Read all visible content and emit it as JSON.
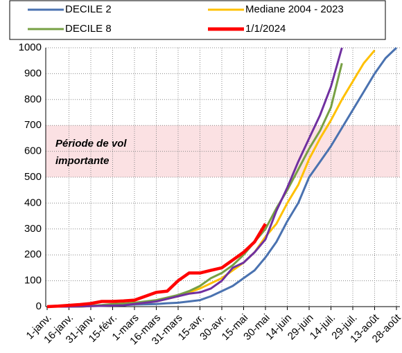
{
  "chart_data": {
    "type": "line",
    "categories": [
      "1-janv.",
      null,
      "16-janv.",
      null,
      "31-janv.",
      null,
      "15-févr.",
      null,
      "1-mars",
      null,
      "16-mars",
      null,
      "31-mars",
      null,
      "15-avr.",
      null,
      "30-avr.",
      null,
      "15-mai",
      null,
      "30-mai",
      null,
      "14-juin",
      null,
      "29-juin",
      null,
      "14-juil.",
      null,
      "29-juil.",
      null,
      "13-août",
      null,
      "28-août"
    ],
    "series": [
      {
        "name": "DECILE 2",
        "color": "#4a72b0",
        "values": [
          0,
          0,
          0,
          0,
          2,
          3,
          5,
          6,
          8,
          9,
          10,
          13,
          15,
          20,
          25,
          40,
          60,
          80,
          110,
          140,
          190,
          250,
          330,
          400,
          500,
          560,
          620,
          690,
          760,
          830,
          900,
          960,
          1000
        ]
      },
      {
        "name": "Mediane 2004 - 2023",
        "color": "#ffc000",
        "values": [
          0,
          0,
          0,
          0,
          2,
          4,
          6,
          8,
          10,
          15,
          20,
          30,
          40,
          55,
          70,
          90,
          110,
          140,
          170,
          210,
          270,
          320,
          400,
          470,
          570,
          650,
          720,
          800,
          870,
          940,
          990,
          null,
          null
        ]
      },
      {
        "name": "DECILE 8",
        "color": "#77a043",
        "values": [
          0,
          0,
          0,
          0,
          3,
          6,
          10,
          12,
          15,
          20,
          25,
          35,
          45,
          60,
          80,
          110,
          130,
          160,
          200,
          250,
          300,
          380,
          450,
          530,
          610,
          680,
          770,
          940,
          null,
          null,
          null,
          null,
          null
        ]
      },
      {
        "name": "1/1/2024",
        "color": "#ff0000",
        "values": [
          0,
          2,
          5,
          8,
          12,
          20,
          20,
          22,
          25,
          40,
          55,
          60,
          100,
          130,
          130,
          140,
          150,
          180,
          210,
          250,
          320,
          null,
          null,
          null,
          null,
          null,
          null,
          null,
          null,
          null,
          null,
          null,
          null
        ]
      },
      {
        "color": "#7030a0",
        "values": [
          0,
          0,
          0,
          1,
          2,
          3,
          4,
          5,
          10,
          15,
          20,
          30,
          40,
          50,
          55,
          70,
          100,
          150,
          170,
          210,
          260,
          370,
          460,
          560,
          650,
          740,
          850,
          1000,
          null,
          null,
          null,
          null,
          null
        ]
      }
    ],
    "ylim": [
      0,
      1000
    ],
    "yticks": [
      0,
      100,
      200,
      300,
      400,
      500,
      600,
      700,
      800,
      900,
      1000
    ],
    "grid": true,
    "band": [
      500,
      700
    ],
    "band_color": "#fbe1e3",
    "annotation": [
      "Période de vol",
      "importante"
    ]
  }
}
